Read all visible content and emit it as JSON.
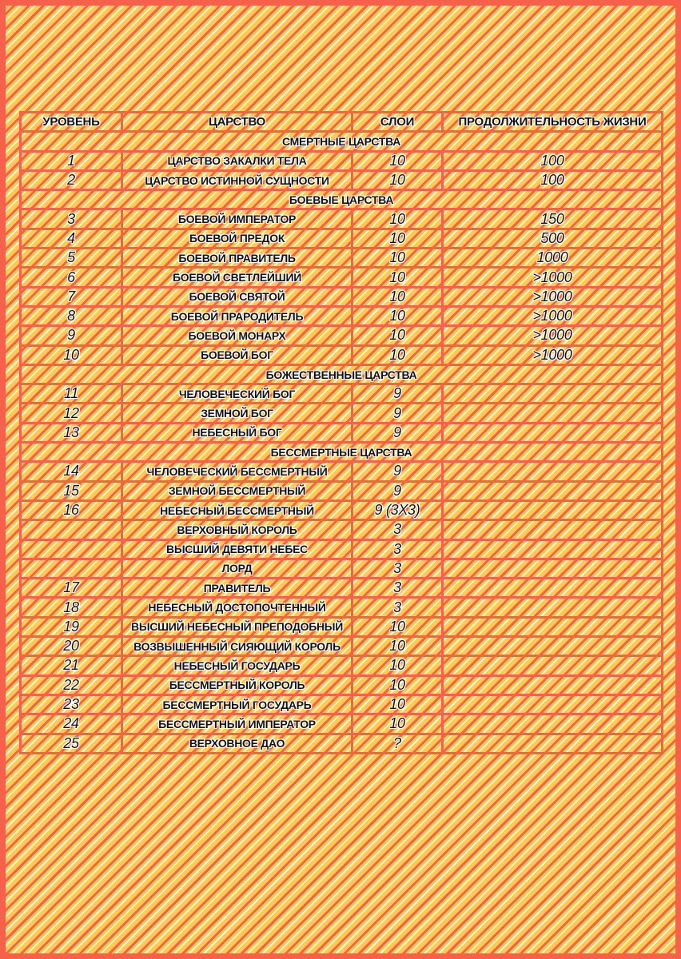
{
  "colors": {
    "background": "#fec94f",
    "stripe": "#f7604a",
    "stripe_light": "#fff4dc",
    "border": "#f7604a"
  },
  "headers": [
    "Уровень",
    "Царство",
    "Слои",
    "Продолжительность жизни"
  ],
  "rows": [
    {
      "section": "Смертные царства"
    },
    {
      "level": "1",
      "realm": "Царство закалки тела",
      "layers": "10",
      "lifespan": "100"
    },
    {
      "level": "2",
      "realm": "Царство истинной сущности",
      "layers": "10",
      "lifespan": "100"
    },
    {
      "section": "Боевые царства"
    },
    {
      "level": "3",
      "realm": "Боевой император",
      "layers": "10",
      "lifespan": "150"
    },
    {
      "level": "4",
      "realm": "Боевой предок",
      "layers": "10",
      "lifespan": "500"
    },
    {
      "level": "5",
      "realm": "Боевой правитель",
      "layers": "10",
      "lifespan": "1000"
    },
    {
      "level": "6",
      "realm": "Боевой светлейший",
      "layers": "10",
      "lifespan": ">1000"
    },
    {
      "level": "7",
      "realm": "Боевой святой",
      "layers": "10",
      "lifespan": ">1000"
    },
    {
      "level": "8",
      "realm": "Боевой прародитель",
      "layers": "10",
      "lifespan": ">1000"
    },
    {
      "level": "9",
      "realm": "Боевой монарх",
      "layers": "10",
      "lifespan": ">1000"
    },
    {
      "level": "10",
      "realm": "Боевой бог",
      "layers": "10",
      "lifespan": ">1000"
    },
    {
      "section": "Божественные царства"
    },
    {
      "level": "11",
      "realm": "Человеческий бог",
      "layers": "9",
      "lifespan": ""
    },
    {
      "level": "12",
      "realm": "Земной бог",
      "layers": "9",
      "lifespan": ""
    },
    {
      "level": "13",
      "realm": "Небесный бог",
      "layers": "9",
      "lifespan": ""
    },
    {
      "section": "Бессмертные царства"
    },
    {
      "level": "14",
      "realm": "Человеческий бессмертный",
      "layers": "9",
      "lifespan": ""
    },
    {
      "level": "15",
      "realm": "Земной бессмертный",
      "layers": "9",
      "lifespan": ""
    },
    {
      "level": "16",
      "realm": "Небесный бессмертный",
      "layers": "9 (3x3)",
      "lifespan": ""
    },
    {
      "level": "",
      "realm": "Верховный король",
      "layers": "3",
      "lifespan": ""
    },
    {
      "level": "",
      "realm": "Высший девяти небес",
      "layers": "3",
      "lifespan": ""
    },
    {
      "level": "",
      "realm": "Лорд",
      "layers": "3",
      "lifespan": ""
    },
    {
      "level": "17",
      "realm": "Правитель",
      "layers": "3",
      "lifespan": ""
    },
    {
      "level": "18",
      "realm": "Небесный достопочтенный",
      "layers": "3",
      "lifespan": ""
    },
    {
      "level": "19",
      "realm": "Высший небесный преподобный",
      "layers": "10",
      "lifespan": ""
    },
    {
      "level": "20",
      "realm": "Возвышенный сияющий король",
      "layers": "10",
      "lifespan": ""
    },
    {
      "level": "21",
      "realm": "Небесный государь",
      "layers": "10",
      "lifespan": ""
    },
    {
      "level": "22",
      "realm": "Бессмертный король",
      "layers": "10",
      "lifespan": ""
    },
    {
      "level": "23",
      "realm": "Бессмертный государь",
      "layers": "10",
      "lifespan": ""
    },
    {
      "level": "24",
      "realm": "Бессмертный император",
      "layers": "10",
      "lifespan": ""
    },
    {
      "level": "25",
      "realm": "Верховное дао",
      "layers": "?",
      "lifespan": ""
    }
  ]
}
